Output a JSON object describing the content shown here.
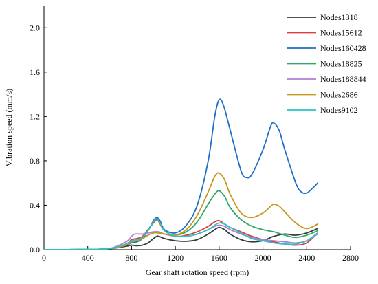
{
  "chart_data": {
    "type": "line",
    "xlabel": "Gear shaft rotation speed (rpm)",
    "ylabel": "Vibration speed (mm/s)",
    "xlim": [
      0,
      2800
    ],
    "ylim": [
      0,
      2.2
    ],
    "x_ticks": [
      "0",
      "400",
      "800",
      "1200",
      "1600",
      "2000",
      "2400",
      "2800"
    ],
    "y_ticks": [
      "0.0",
      "0.4",
      "0.8",
      "1.2",
      "1.6",
      "2.0"
    ],
    "grid": false,
    "legend_position": "top-right",
    "series": [
      {
        "name": "Nodes1318",
        "color": "#3a3a3a",
        "points": [
          [
            0,
            0
          ],
          [
            400,
            0.002
          ],
          [
            600,
            0.008
          ],
          [
            750,
            0.03
          ],
          [
            800,
            0.04
          ],
          [
            850,
            0.035
          ],
          [
            900,
            0.04
          ],
          [
            950,
            0.06
          ],
          [
            1000,
            0.1
          ],
          [
            1030,
            0.12
          ],
          [
            1050,
            0.12
          ],
          [
            1100,
            0.1
          ],
          [
            1200,
            0.08
          ],
          [
            1300,
            0.075
          ],
          [
            1400,
            0.09
          ],
          [
            1500,
            0.14
          ],
          [
            1560,
            0.18
          ],
          [
            1600,
            0.2
          ],
          [
            1650,
            0.18
          ],
          [
            1700,
            0.14
          ],
          [
            1800,
            0.09
          ],
          [
            1900,
            0.07
          ],
          [
            2000,
            0.08
          ],
          [
            2050,
            0.1
          ],
          [
            2100,
            0.12
          ],
          [
            2200,
            0.14
          ],
          [
            2300,
            0.13
          ],
          [
            2400,
            0.15
          ],
          [
            2500,
            0.19
          ]
        ]
      },
      {
        "name": "Nodes15612",
        "color": "#e03c3c",
        "points": [
          [
            0,
            0
          ],
          [
            400,
            0.002
          ],
          [
            600,
            0.01
          ],
          [
            750,
            0.05
          ],
          [
            800,
            0.09
          ],
          [
            850,
            0.1
          ],
          [
            900,
            0.12
          ],
          [
            950,
            0.18
          ],
          [
            1000,
            0.24
          ],
          [
            1030,
            0.27
          ],
          [
            1050,
            0.25
          ],
          [
            1100,
            0.17
          ],
          [
            1200,
            0.12
          ],
          [
            1300,
            0.13
          ],
          [
            1400,
            0.16
          ],
          [
            1500,
            0.21
          ],
          [
            1560,
            0.25
          ],
          [
            1600,
            0.26
          ],
          [
            1650,
            0.23
          ],
          [
            1700,
            0.2
          ],
          [
            1800,
            0.16
          ],
          [
            1900,
            0.12
          ],
          [
            2000,
            0.09
          ],
          [
            2100,
            0.07
          ],
          [
            2200,
            0.05
          ],
          [
            2300,
            0.04
          ],
          [
            2400,
            0.06
          ],
          [
            2500,
            0.15
          ]
        ]
      },
      {
        "name": "Nodes160428",
        "color": "#1f6fc5",
        "points": [
          [
            0,
            0
          ],
          [
            400,
            0.002
          ],
          [
            600,
            0.01
          ],
          [
            750,
            0.04
          ],
          [
            800,
            0.06
          ],
          [
            850,
            0.07
          ],
          [
            900,
            0.1
          ],
          [
            950,
            0.17
          ],
          [
            1000,
            0.26
          ],
          [
            1030,
            0.29
          ],
          [
            1060,
            0.26
          ],
          [
            1100,
            0.18
          ],
          [
            1200,
            0.15
          ],
          [
            1300,
            0.22
          ],
          [
            1400,
            0.4
          ],
          [
            1500,
            0.8
          ],
          [
            1560,
            1.2
          ],
          [
            1600,
            1.35
          ],
          [
            1640,
            1.3
          ],
          [
            1700,
            1.08
          ],
          [
            1800,
            0.71
          ],
          [
            1850,
            0.65
          ],
          [
            1900,
            0.68
          ],
          [
            2000,
            0.9
          ],
          [
            2070,
            1.11
          ],
          [
            2100,
            1.14
          ],
          [
            2150,
            1.07
          ],
          [
            2200,
            0.9
          ],
          [
            2300,
            0.6
          ],
          [
            2350,
            0.52
          ],
          [
            2400,
            0.51
          ],
          [
            2450,
            0.55
          ],
          [
            2500,
            0.6
          ]
        ]
      },
      {
        "name": "Nodes18825",
        "color": "#2ea86b",
        "points": [
          [
            0,
            0
          ],
          [
            400,
            0.002
          ],
          [
            600,
            0.01
          ],
          [
            750,
            0.04
          ],
          [
            800,
            0.07
          ],
          [
            850,
            0.08
          ],
          [
            900,
            0.1
          ],
          [
            950,
            0.13
          ],
          [
            1000,
            0.15
          ],
          [
            1050,
            0.15
          ],
          [
            1100,
            0.14
          ],
          [
            1200,
            0.13
          ],
          [
            1300,
            0.16
          ],
          [
            1400,
            0.25
          ],
          [
            1500,
            0.41
          ],
          [
            1560,
            0.5
          ],
          [
            1600,
            0.53
          ],
          [
            1650,
            0.48
          ],
          [
            1700,
            0.38
          ],
          [
            1800,
            0.27
          ],
          [
            1900,
            0.21
          ],
          [
            2000,
            0.18
          ],
          [
            2100,
            0.16
          ],
          [
            2200,
            0.13
          ],
          [
            2300,
            0.11
          ],
          [
            2400,
            0.13
          ],
          [
            2500,
            0.17
          ]
        ]
      },
      {
        "name": "Nodes188844",
        "color": "#b07ddb",
        "points": [
          [
            0,
            0
          ],
          [
            400,
            0.002
          ],
          [
            600,
            0.01
          ],
          [
            750,
            0.07
          ],
          [
            800,
            0.12
          ],
          [
            830,
            0.14
          ],
          [
            900,
            0.14
          ],
          [
            950,
            0.15
          ],
          [
            1000,
            0.16
          ],
          [
            1050,
            0.16
          ],
          [
            1100,
            0.14
          ],
          [
            1200,
            0.12
          ],
          [
            1300,
            0.12
          ],
          [
            1400,
            0.14
          ],
          [
            1500,
            0.18
          ],
          [
            1560,
            0.21
          ],
          [
            1600,
            0.22
          ],
          [
            1650,
            0.21
          ],
          [
            1700,
            0.18
          ],
          [
            1800,
            0.14
          ],
          [
            1900,
            0.11
          ],
          [
            2000,
            0.09
          ],
          [
            2100,
            0.08
          ],
          [
            2200,
            0.07
          ],
          [
            2300,
            0.06
          ],
          [
            2400,
            0.08
          ],
          [
            2500,
            0.14
          ]
        ]
      },
      {
        "name": "Nodes2686",
        "color": "#c8961a",
        "points": [
          [
            0,
            0
          ],
          [
            400,
            0.002
          ],
          [
            600,
            0.01
          ],
          [
            750,
            0.04
          ],
          [
            800,
            0.07
          ],
          [
            850,
            0.08
          ],
          [
            900,
            0.1
          ],
          [
            950,
            0.13
          ],
          [
            1000,
            0.15
          ],
          [
            1050,
            0.15
          ],
          [
            1100,
            0.14
          ],
          [
            1200,
            0.13
          ],
          [
            1300,
            0.18
          ],
          [
            1400,
            0.31
          ],
          [
            1500,
            0.52
          ],
          [
            1560,
            0.66
          ],
          [
            1600,
            0.69
          ],
          [
            1650,
            0.63
          ],
          [
            1700,
            0.5
          ],
          [
            1800,
            0.33
          ],
          [
            1900,
            0.29
          ],
          [
            2000,
            0.33
          ],
          [
            2070,
            0.39
          ],
          [
            2100,
            0.41
          ],
          [
            2150,
            0.39
          ],
          [
            2200,
            0.34
          ],
          [
            2300,
            0.24
          ],
          [
            2400,
            0.19
          ],
          [
            2500,
            0.23
          ]
        ]
      },
      {
        "name": "Nodes9102",
        "color": "#26c6c6",
        "points": [
          [
            0,
            0
          ],
          [
            400,
            0.002
          ],
          [
            600,
            0.01
          ],
          [
            750,
            0.05
          ],
          [
            800,
            0.08
          ],
          [
            850,
            0.09
          ],
          [
            900,
            0.11
          ],
          [
            950,
            0.17
          ],
          [
            1000,
            0.25
          ],
          [
            1030,
            0.28
          ],
          [
            1060,
            0.24
          ],
          [
            1100,
            0.17
          ],
          [
            1200,
            0.12
          ],
          [
            1300,
            0.12
          ],
          [
            1400,
            0.14
          ],
          [
            1500,
            0.18
          ],
          [
            1560,
            0.22
          ],
          [
            1600,
            0.24
          ],
          [
            1650,
            0.23
          ],
          [
            1700,
            0.2
          ],
          [
            1800,
            0.15
          ],
          [
            1900,
            0.1
          ],
          [
            2000,
            0.08
          ],
          [
            2100,
            0.06
          ],
          [
            2200,
            0.05
          ],
          [
            2300,
            0.05
          ],
          [
            2400,
            0.08
          ],
          [
            2500,
            0.15
          ]
        ]
      }
    ]
  }
}
